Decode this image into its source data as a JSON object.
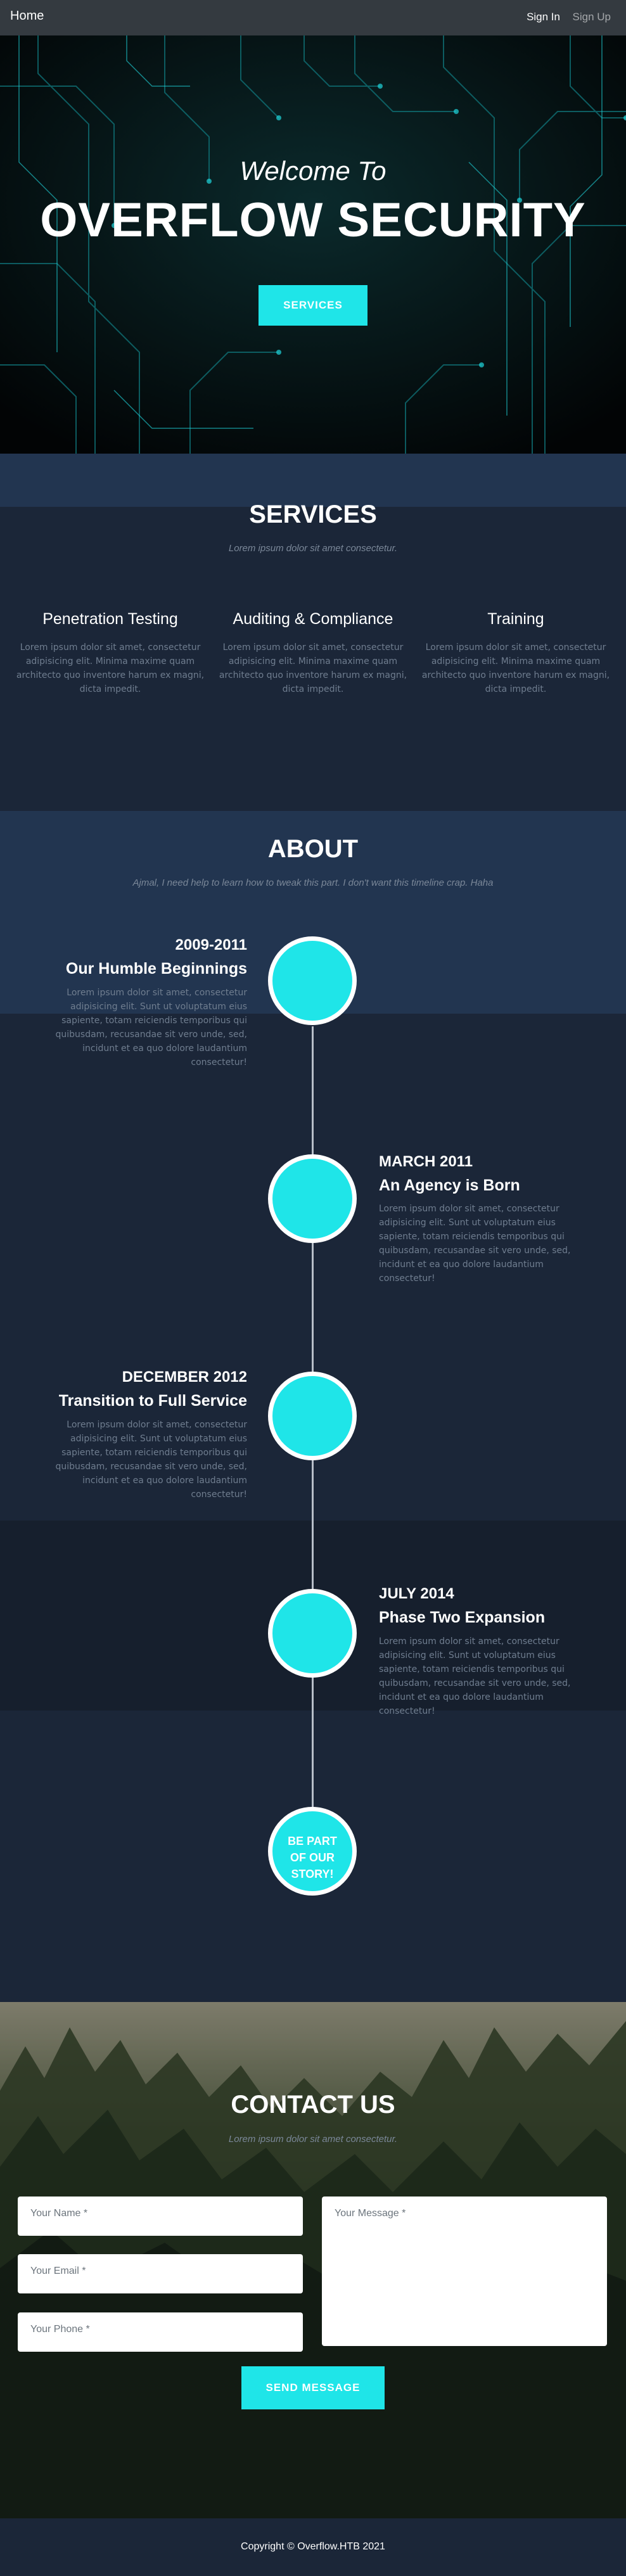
{
  "nav": {
    "brand": "Home",
    "sign_in": "Sign In",
    "sign_up": "Sign Up"
  },
  "hero": {
    "welcome": "Welcome To",
    "title": "OVERFLOW SECURITY",
    "button": "SERVICES"
  },
  "services": {
    "title": "SERVICES",
    "subtitle": "Lorem ipsum dolor sit amet consectetur.",
    "items": [
      {
        "heading": "Penetration Testing",
        "text": "Lorem ipsum dolor sit amet, consectetur adipisicing elit. Minima maxime quam architecto quo inventore harum ex magni, dicta impedit."
      },
      {
        "heading": "Auditing & Compliance",
        "text": "Lorem ipsum dolor sit amet, consectetur adipisicing elit. Minima maxime quam architecto quo inventore harum ex magni, dicta impedit."
      },
      {
        "heading": "Training",
        "text": "Lorem ipsum dolor sit amet, consectetur adipisicing elit. Minima maxime quam architecto quo inventore harum ex magni, dicta impedit."
      }
    ]
  },
  "about": {
    "title": "ABOUT",
    "subtitle": "Ajmal, I need help to learn how to tweak this part. I don't want this timeline crap. Haha",
    "timeline": [
      {
        "date": "2009-2011",
        "heading": "Our Humble Beginnings",
        "text": "Lorem ipsum dolor sit amet, consectetur adipisicing elit. Sunt ut voluptatum eius sapiente, totam reiciendis temporibus qui quibusdam, recusandae sit vero unde, sed, incidunt et ea quo dolore laudantium consectetur!"
      },
      {
        "date": "MARCH 2011",
        "heading": "An Agency is Born",
        "text": "Lorem ipsum dolor sit amet, consectetur adipisicing elit. Sunt ut voluptatum eius sapiente, totam reiciendis temporibus qui quibusdam, recusandae sit vero unde, sed, incidunt et ea quo dolore laudantium consectetur!"
      },
      {
        "date": "DECEMBER 2012",
        "heading": "Transition to Full Service",
        "text": "Lorem ipsum dolor sit amet, consectetur adipisicing elit. Sunt ut voluptatum eius sapiente, totam reiciendis temporibus qui quibusdam, recusandae sit vero unde, sed, incidunt et ea quo dolore laudantium consectetur!"
      },
      {
        "date": "JULY 2014",
        "heading": "Phase Two Expansion",
        "text": "Lorem ipsum dolor sit amet, consectetur adipisicing elit. Sunt ut voluptatum eius sapiente, totam reiciendis temporibus qui quibusdam, recusandae sit vero unde, sed, incidunt et ea quo dolore laudantium consectetur!"
      }
    ],
    "end_line1": "BE PART",
    "end_line2": "OF OUR",
    "end_line3": "STORY!"
  },
  "contact": {
    "title": "CONTACT US",
    "subtitle": "Lorem ipsum dolor sit amet consectetur.",
    "name_placeholder": "Your Name *",
    "email_placeholder": "Your Email *",
    "phone_placeholder": "Your Phone *",
    "message_placeholder": "Your Message *",
    "send": "SEND MESSAGE"
  },
  "footer": {
    "copyright": "Copyright © Overflow.HTB 2021"
  },
  "colors": {
    "accent": "#1fe5e8",
    "nav": "#343a40",
    "band_light": "#223550",
    "band_dark": "#1b2638"
  }
}
